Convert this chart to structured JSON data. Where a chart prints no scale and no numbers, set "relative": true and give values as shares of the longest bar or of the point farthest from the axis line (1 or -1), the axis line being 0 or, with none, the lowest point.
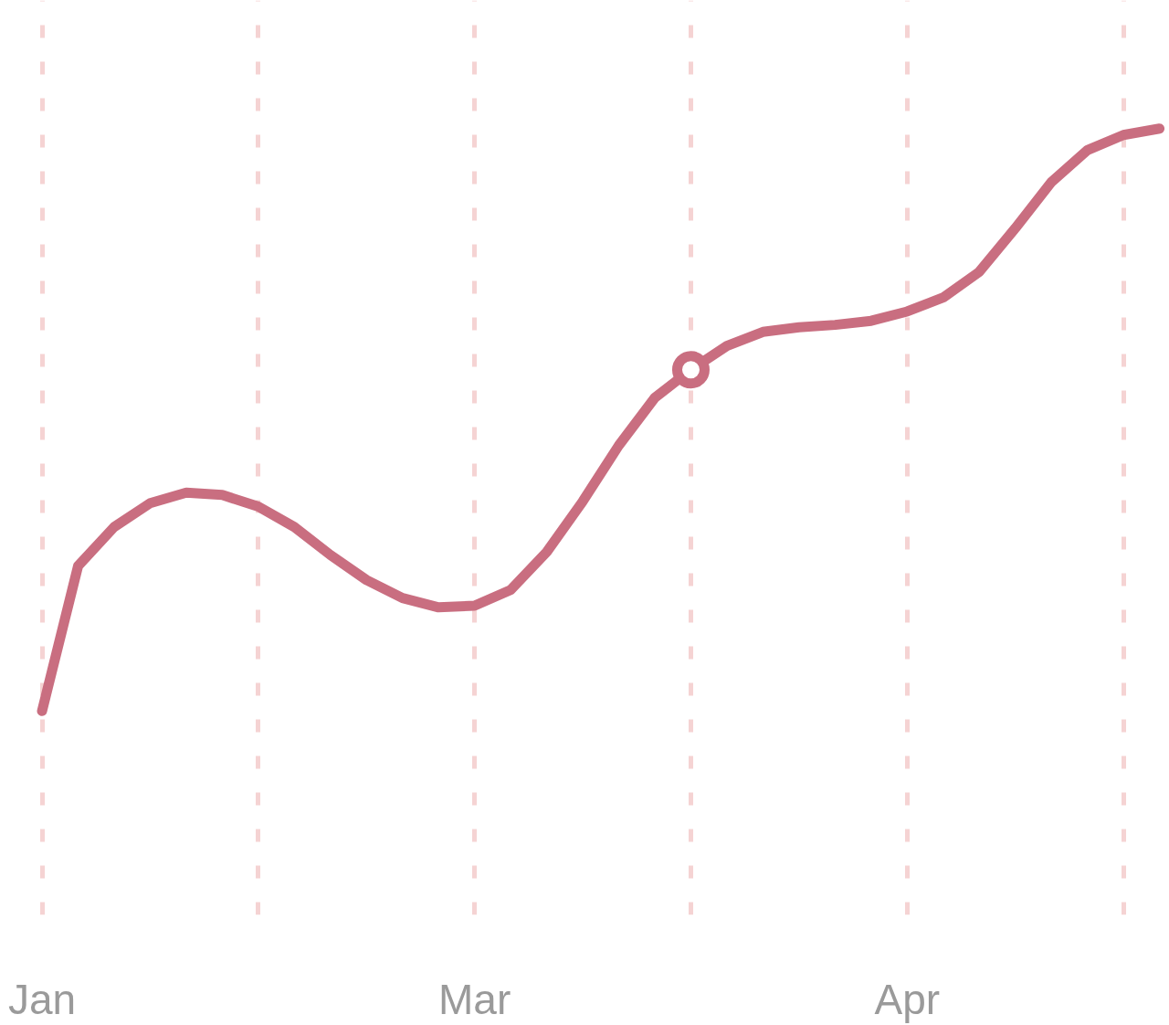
{
  "chart_data": {
    "type": "line",
    "relative": true,
    "grid": "x",
    "line_style": "solid",
    "categories": [
      "Jan",
      null,
      null,
      null,
      null,
      null,
      null,
      null,
      null,
      null,
      null,
      null,
      "Mar",
      null,
      null,
      null,
      null,
      null,
      null,
      null,
      null,
      null,
      null,
      null,
      "Apr",
      null,
      null,
      null,
      null,
      null,
      null,
      null
    ],
    "series": [
      {
        "color": "#c96e80",
        "values": [
          0,
          0.249,
          0.316,
          0.357,
          0.375,
          0.371,
          0.351,
          0.316,
          0.268,
          0.225,
          0.194,
          0.178,
          0.181,
          0.208,
          0.273,
          0.36,
          0.456,
          0.538,
          0.586,
          0.627,
          0.651,
          0.659,
          0.663,
          0.67,
          0.686,
          0.71,
          0.754,
          0.829,
          0.908,
          0.963,
          0.989,
          1
        ]
      },
      {
        "type": "scatter",
        "marker": "circle",
        "color": "#c96e80",
        "values": [
          null,
          null,
          null,
          null,
          null,
          null,
          null,
          null,
          null,
          null,
          null,
          null,
          null,
          null,
          null,
          null,
          null,
          null,
          0.586,
          null,
          null,
          null,
          null,
          null,
          null,
          null,
          null,
          null,
          null,
          null,
          null,
          null
        ]
      }
    ]
  }
}
